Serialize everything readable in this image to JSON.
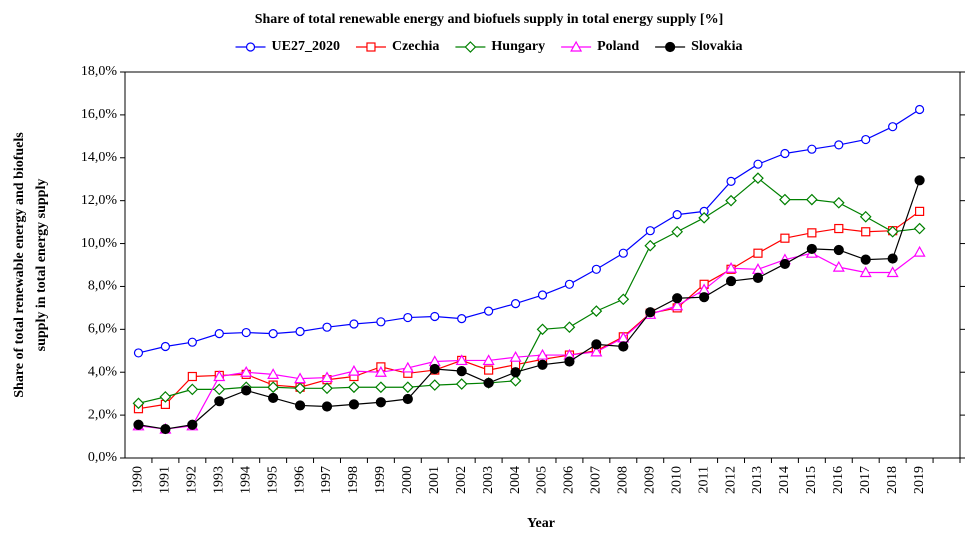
{
  "chart_data": {
    "type": "line",
    "title": "Share of total renewable energy and biofuels supply in total energy supply [%]",
    "xlabel": "Year",
    "ylabel": [
      "Share of total renewable energy and biofuels",
      "supply in total energy supply"
    ],
    "categories": [
      "1990",
      "1991",
      "1992",
      "1993",
      "1994",
      "1995",
      "1996",
      "1997",
      "1998",
      "1999",
      "2000",
      "2001",
      "2002",
      "2003",
      "2004",
      "2005",
      "2006",
      "2007",
      "2008",
      "2009",
      "2010",
      "2011",
      "2012",
      "2013",
      "2014",
      "2015",
      "2016",
      "2017",
      "2018",
      "2019"
    ],
    "ylim": [
      0,
      18
    ],
    "yticks": [
      {
        "value": 0,
        "label": "0,0%"
      },
      {
        "value": 2,
        "label": "2,0%"
      },
      {
        "value": 4,
        "label": "4,0%"
      },
      {
        "value": 6,
        "label": "6,0%"
      },
      {
        "value": 8,
        "label": "8,0%"
      },
      {
        "value": 10,
        "label": "10,0%"
      },
      {
        "value": 12,
        "label": "12,0%"
      },
      {
        "value": 14,
        "label": "14,0%"
      },
      {
        "value": 16,
        "label": "16,0%"
      },
      {
        "value": 18,
        "label": "18,0%"
      }
    ],
    "legend": "top",
    "series": [
      {
        "name": "UE27_2020",
        "color": "#0000ff",
        "marker": "circle",
        "values": [
          4.9,
          5.2,
          5.4,
          5.8,
          5.85,
          5.8,
          5.9,
          6.1,
          6.25,
          6.35,
          6.55,
          6.6,
          6.5,
          6.85,
          7.2,
          7.6,
          8.1,
          8.8,
          9.55,
          10.6,
          11.35,
          11.5,
          12.9,
          13.7,
          14.2,
          14.4,
          14.6,
          14.85,
          15.45,
          16.25
        ]
      },
      {
        "name": "Czechia",
        "color": "#ff0000",
        "marker": "square",
        "values": [
          2.3,
          2.5,
          3.8,
          3.85,
          3.9,
          3.4,
          3.3,
          3.65,
          3.8,
          4.25,
          3.95,
          4.1,
          4.55,
          4.1,
          4.35,
          4.6,
          4.8,
          5.0,
          5.65,
          6.75,
          7.0,
          8.1,
          8.8,
          9.55,
          10.25,
          10.5,
          10.7,
          10.55,
          10.6,
          11.5
        ]
      },
      {
        "name": "Hungary",
        "color": "#008000",
        "marker": "diamond",
        "values": [
          2.55,
          2.85,
          3.2,
          3.2,
          3.3,
          3.3,
          3.25,
          3.25,
          3.3,
          3.3,
          3.3,
          3.4,
          3.45,
          3.5,
          3.6,
          6.0,
          6.1,
          6.85,
          7.4,
          9.9,
          10.55,
          11.2,
          12.0,
          13.05,
          12.05,
          12.05,
          11.9,
          11.25,
          10.55,
          10.7
        ]
      },
      {
        "name": "Poland",
        "color": "#ff00ff",
        "marker": "triangle",
        "values": [
          1.5,
          1.35,
          1.5,
          3.8,
          4.0,
          3.9,
          3.7,
          3.75,
          4.05,
          4.0,
          4.2,
          4.5,
          4.55,
          4.55,
          4.7,
          4.8,
          4.8,
          4.95,
          5.6,
          6.7,
          7.1,
          7.85,
          8.85,
          8.8,
          9.25,
          9.55,
          8.9,
          8.65,
          8.65,
          9.6
        ]
      },
      {
        "name": "Slovakia",
        "color": "#000000",
        "marker": "filled-circle",
        "values": [
          1.55,
          1.35,
          1.55,
          2.65,
          3.15,
          2.8,
          2.45,
          2.4,
          2.5,
          2.6,
          2.75,
          4.15,
          4.05,
          3.5,
          4.0,
          4.35,
          4.5,
          5.3,
          5.2,
          6.8,
          7.45,
          7.5,
          8.25,
          8.4,
          9.05,
          9.75,
          9.7,
          9.25,
          9.3,
          12.95
        ]
      }
    ]
  }
}
